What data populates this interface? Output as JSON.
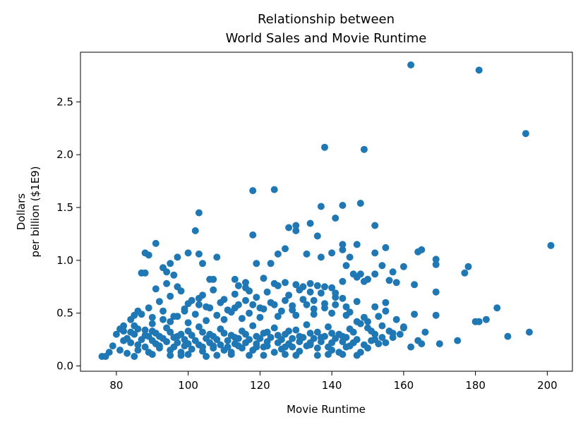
{
  "chart_data": {
    "type": "scatter",
    "title_line1": "Relationship between",
    "title_line2": "World Sales and Movie Runtime",
    "xlabel": "Movie Runtime",
    "ylabel_line1": "Dollars",
    "ylabel_line2": "per billion ($1E9)",
    "xlim": [
      70,
      207
    ],
    "ylim": [
      -0.05,
      2.97
    ],
    "x_ticks": [
      80,
      100,
      120,
      140,
      160,
      180,
      200
    ],
    "x_tick_labels": [
      "80",
      "100",
      "120",
      "140",
      "160",
      "180",
      "200"
    ],
    "y_ticks": [
      0.0,
      0.5,
      1.0,
      1.5,
      2.0,
      2.5
    ],
    "y_tick_labels": [
      "0.0",
      "0.5",
      "1.0",
      "1.5",
      "2.0",
      "2.5"
    ],
    "grid": false,
    "marker_color": "#1f77b4",
    "points": [
      [
        162,
        2.85
      ],
      [
        181,
        2.8
      ],
      [
        194,
        2.2
      ],
      [
        138,
        2.07
      ],
      [
        149,
        2.05
      ],
      [
        201,
        1.14
      ],
      [
        195,
        0.32
      ],
      [
        118,
        1.66
      ],
      [
        124,
        1.67
      ],
      [
        137,
        1.51
      ],
      [
        143,
        1.52
      ],
      [
        148,
        1.54
      ],
      [
        103,
        1.45
      ],
      [
        102,
        1.28
      ],
      [
        141,
        1.4
      ],
      [
        152,
        1.33
      ],
      [
        91,
        1.16
      ],
      [
        88,
        1.07
      ],
      [
        89,
        1.05
      ],
      [
        100,
        1.07
      ],
      [
        103,
        1.06
      ],
      [
        108,
        1.03
      ],
      [
        97,
        1.03
      ],
      [
        95,
        0.97
      ],
      [
        93,
        0.93
      ],
      [
        94,
        0.89
      ],
      [
        96,
        0.86
      ],
      [
        87,
        0.88
      ],
      [
        88,
        0.88
      ],
      [
        118,
        1.24
      ],
      [
        125,
        1.06
      ],
      [
        127,
        1.11
      ],
      [
        128,
        1.31
      ],
      [
        130,
        1.28
      ],
      [
        130,
        1.33
      ],
      [
        134,
        1.35
      ],
      [
        136,
        1.23
      ],
      [
        137,
        1.03
      ],
      [
        133,
        1.06
      ],
      [
        140,
        1.07
      ],
      [
        143,
        1.1
      ],
      [
        143,
        1.15
      ],
      [
        147,
        1.15
      ],
      [
        145,
        1.03
      ],
      [
        152,
        1.07
      ],
      [
        155,
        1.12
      ],
      [
        119,
        0.97
      ],
      [
        123,
        0.97
      ],
      [
        104,
        0.97
      ],
      [
        106,
        0.82
      ],
      [
        117,
        0.71
      ],
      [
        121,
        0.83
      ],
      [
        124,
        0.78
      ],
      [
        127,
        0.79
      ],
      [
        130,
        0.77
      ],
      [
        132,
        0.75
      ],
      [
        134,
        0.7
      ],
      [
        136,
        0.76
      ],
      [
        138,
        0.75
      ],
      [
        141,
        0.69
      ],
      [
        143,
        0.8
      ],
      [
        144,
        0.95
      ],
      [
        147,
        0.84
      ],
      [
        148,
        0.87
      ],
      [
        150,
        0.82
      ],
      [
        152,
        0.87
      ],
      [
        154,
        0.95
      ],
      [
        156,
        0.81
      ],
      [
        157,
        0.89
      ],
      [
        160,
        0.94
      ],
      [
        163,
        0.77
      ],
      [
        164,
        1.08
      ],
      [
        165,
        1.1
      ],
      [
        169,
        1.01
      ],
      [
        169,
        0.96
      ],
      [
        169,
        0.7
      ],
      [
        177,
        0.88
      ],
      [
        178,
        0.94
      ],
      [
        186,
        0.55
      ],
      [
        183,
        0.44
      ],
      [
        180,
        0.42
      ],
      [
        181,
        0.42
      ],
      [
        175,
        0.24
      ],
      [
        170,
        0.21
      ],
      [
        189,
        0.28
      ],
      [
        166,
        0.32
      ],
      [
        164,
        0.24
      ],
      [
        165,
        0.21
      ],
      [
        162,
        0.18
      ],
      [
        160,
        0.36
      ],
      [
        158,
        0.44
      ],
      [
        156,
        0.33
      ],
      [
        154,
        0.27
      ],
      [
        153,
        0.21
      ],
      [
        152,
        0.25
      ],
      [
        150,
        0.17
      ],
      [
        148,
        0.13
      ],
      [
        146,
        0.22
      ],
      [
        144,
        0.18
      ],
      [
        142,
        0.13
      ],
      [
        140,
        0.15
      ],
      [
        136,
        0.17
      ],
      [
        134,
        0.2
      ],
      [
        131,
        0.14
      ],
      [
        129,
        0.18
      ],
      [
        126,
        0.16
      ],
      [
        124,
        0.13
      ],
      [
        121,
        0.18
      ],
      [
        118,
        0.15
      ],
      [
        115,
        0.17
      ],
      [
        112,
        0.13
      ],
      [
        110,
        0.15
      ],
      [
        107,
        0.17
      ],
      [
        104,
        0.14
      ],
      [
        101,
        0.16
      ],
      [
        98,
        0.13
      ],
      [
        95,
        0.15
      ],
      [
        92,
        0.17
      ],
      [
        89,
        0.13
      ],
      [
        86,
        0.15
      ],
      [
        83,
        0.12
      ],
      [
        81,
        0.15
      ],
      [
        78,
        0.13
      ],
      [
        77,
        0.09
      ],
      [
        76,
        0.09
      ],
      [
        79,
        0.19
      ],
      [
        82,
        0.24
      ],
      [
        85,
        0.3
      ],
      [
        88,
        0.34
      ],
      [
        91,
        0.31
      ],
      [
        94,
        0.36
      ],
      [
        97,
        0.28
      ],
      [
        100,
        0.33
      ],
      [
        103,
        0.37
      ],
      [
        106,
        0.3
      ],
      [
        109,
        0.35
      ],
      [
        112,
        0.29
      ],
      [
        115,
        0.33
      ],
      [
        118,
        0.38
      ],
      [
        121,
        0.31
      ],
      [
        124,
        0.36
      ],
      [
        127,
        0.3
      ],
      [
        130,
        0.34
      ],
      [
        133,
        0.39
      ],
      [
        136,
        0.32
      ],
      [
        139,
        0.37
      ],
      [
        142,
        0.3
      ],
      [
        145,
        0.35
      ],
      [
        148,
        0.4
      ],
      [
        151,
        0.33
      ],
      [
        154,
        0.38
      ],
      [
        157,
        0.31
      ],
      [
        84,
        0.44
      ],
      [
        87,
        0.49
      ],
      [
        90,
        0.46
      ],
      [
        93,
        0.52
      ],
      [
        96,
        0.47
      ],
      [
        99,
        0.54
      ],
      [
        102,
        0.49
      ],
      [
        105,
        0.56
      ],
      [
        108,
        0.48
      ],
      [
        111,
        0.53
      ],
      [
        114,
        0.58
      ],
      [
        117,
        0.5
      ],
      [
        120,
        0.55
      ],
      [
        123,
        0.6
      ],
      [
        126,
        0.52
      ],
      [
        129,
        0.57
      ],
      [
        132,
        0.63
      ],
      [
        135,
        0.54
      ],
      [
        138,
        0.59
      ],
      [
        141,
        0.65
      ],
      [
        144,
        0.56
      ],
      [
        147,
        0.61
      ],
      [
        150,
        0.42
      ],
      [
        153,
        0.47
      ],
      [
        155,
        0.52
      ],
      [
        160,
        0.37
      ],
      [
        163,
        0.49
      ],
      [
        169,
        0.48
      ],
      [
        158,
        0.79
      ],
      [
        155,
        0.6
      ],
      [
        152,
        0.56
      ],
      [
        149,
        0.46
      ],
      [
        85,
        0.38
      ],
      [
        90,
        0.4
      ],
      [
        95,
        0.42
      ],
      [
        100,
        0.41
      ],
      [
        105,
        0.43
      ],
      [
        110,
        0.44
      ],
      [
        115,
        0.45
      ],
      [
        120,
        0.46
      ],
      [
        125,
        0.47
      ],
      [
        130,
        0.48
      ],
      [
        135,
        0.49
      ],
      [
        140,
        0.5
      ],
      [
        145,
        0.51
      ],
      [
        92,
        0.61
      ],
      [
        95,
        0.66
      ],
      [
        98,
        0.71
      ],
      [
        101,
        0.62
      ],
      [
        104,
        0.67
      ],
      [
        107,
        0.72
      ],
      [
        110,
        0.63
      ],
      [
        113,
        0.68
      ],
      [
        116,
        0.74
      ],
      [
        119,
        0.65
      ],
      [
        122,
        0.7
      ],
      [
        125,
        0.76
      ],
      [
        128,
        0.67
      ],
      [
        131,
        0.72
      ],
      [
        134,
        0.78
      ],
      [
        137,
        0.69
      ],
      [
        140,
        0.74
      ],
      [
        143,
        0.64
      ],
      [
        146,
        0.87
      ],
      [
        149,
        0.8
      ],
      [
        91,
        0.73
      ],
      [
        94,
        0.78
      ],
      [
        97,
        0.75
      ],
      [
        100,
        0.59
      ],
      [
        103,
        0.64
      ],
      [
        106,
        0.55
      ],
      [
        109,
        0.6
      ],
      [
        112,
        0.51
      ],
      [
        80,
        0.3
      ],
      [
        81,
        0.35
      ],
      [
        82,
        0.38
      ],
      [
        83,
        0.26
      ],
      [
        84,
        0.22
      ],
      [
        86,
        0.2
      ],
      [
        87,
        0.25
      ],
      [
        89,
        0.28
      ],
      [
        90,
        0.24
      ],
      [
        91,
        0.21
      ],
      [
        93,
        0.26
      ],
      [
        94,
        0.23
      ],
      [
        96,
        0.27
      ],
      [
        97,
        0.22
      ],
      [
        99,
        0.25
      ],
      [
        100,
        0.21
      ],
      [
        102,
        0.24
      ],
      [
        103,
        0.2
      ],
      [
        105,
        0.26
      ],
      [
        106,
        0.22
      ],
      [
        108,
        0.25
      ],
      [
        109,
        0.2
      ],
      [
        111,
        0.24
      ],
      [
        113,
        0.21
      ],
      [
        114,
        0.26
      ],
      [
        116,
        0.22
      ],
      [
        117,
        0.25
      ],
      [
        119,
        0.21
      ],
      [
        120,
        0.26
      ],
      [
        122,
        0.23
      ],
      [
        123,
        0.27
      ],
      [
        125,
        0.22
      ],
      [
        126,
        0.25
      ],
      [
        128,
        0.21
      ],
      [
        129,
        0.26
      ],
      [
        131,
        0.23
      ],
      [
        132,
        0.27
      ],
      [
        134,
        0.22
      ],
      [
        135,
        0.26
      ],
      [
        137,
        0.23
      ],
      [
        138,
        0.28
      ],
      [
        140,
        0.22
      ],
      [
        141,
        0.26
      ],
      [
        143,
        0.23
      ],
      [
        144,
        0.27
      ],
      [
        146,
        0.22
      ],
      [
        147,
        0.25
      ],
      [
        149,
        0.2
      ],
      [
        151,
        0.24
      ],
      [
        88,
        0.18
      ],
      [
        92,
        0.19
      ],
      [
        96,
        0.18
      ],
      [
        99,
        0.19
      ],
      [
        104,
        0.18
      ],
      [
        107,
        0.19
      ],
      [
        111,
        0.18
      ],
      [
        114,
        0.19
      ],
      [
        119,
        0.18
      ],
      [
        122,
        0.19
      ],
      [
        127,
        0.18
      ],
      [
        133,
        0.19
      ],
      [
        139,
        0.18
      ],
      [
        145,
        0.19
      ],
      [
        82,
        0.33
      ],
      [
        84,
        0.32
      ],
      [
        86,
        0.35
      ],
      [
        88,
        0.29
      ],
      [
        90,
        0.33
      ],
      [
        92,
        0.28
      ],
      [
        95,
        0.32
      ],
      [
        98,
        0.3
      ],
      [
        101,
        0.29
      ],
      [
        104,
        0.32
      ],
      [
        107,
        0.28
      ],
      [
        110,
        0.31
      ],
      [
        113,
        0.27
      ],
      [
        116,
        0.3
      ],
      [
        119,
        0.28
      ],
      [
        122,
        0.32
      ],
      [
        125,
        0.29
      ],
      [
        128,
        0.33
      ],
      [
        131,
        0.28
      ],
      [
        134,
        0.31
      ],
      [
        137,
        0.27
      ],
      [
        140,
        0.31
      ],
      [
        143,
        0.28
      ],
      [
        146,
        0.32
      ],
      [
        130,
        0.1
      ],
      [
        143,
        0.11
      ],
      [
        147,
        0.1
      ],
      [
        117,
        0.1
      ],
      [
        108,
        0.1
      ],
      [
        98,
        0.1
      ],
      [
        85,
        0.09
      ],
      [
        90,
        0.11
      ],
      [
        95,
        0.1
      ],
      [
        100,
        0.11
      ],
      [
        105,
        0.09
      ],
      [
        112,
        0.11
      ],
      [
        121,
        0.1
      ],
      [
        127,
        0.11
      ],
      [
        136,
        0.1
      ],
      [
        139,
        0.11
      ],
      [
        113,
        0.82
      ],
      [
        116,
        0.79
      ],
      [
        114,
        0.76
      ],
      [
        107,
        0.82
      ],
      [
        103,
        0.58
      ],
      [
        99,
        0.52
      ],
      [
        97,
        0.47
      ],
      [
        93,
        0.44
      ],
      [
        89,
        0.55
      ],
      [
        86,
        0.52
      ],
      [
        85,
        0.48
      ],
      [
        121,
        0.54
      ],
      [
        118,
        0.58
      ],
      [
        116,
        0.62
      ],
      [
        113,
        0.55
      ],
      [
        124,
        0.58
      ],
      [
        127,
        0.62
      ],
      [
        129,
        0.53
      ],
      [
        133,
        0.58
      ],
      [
        135,
        0.62
      ],
      [
        138,
        0.55
      ],
      [
        141,
        0.58
      ],
      [
        144,
        0.48
      ],
      [
        147,
        0.42
      ],
      [
        150,
        0.36
      ],
      [
        152,
        0.3
      ],
      [
        155,
        0.22
      ],
      [
        157,
        0.27
      ],
      [
        159,
        0.3
      ]
    ]
  }
}
